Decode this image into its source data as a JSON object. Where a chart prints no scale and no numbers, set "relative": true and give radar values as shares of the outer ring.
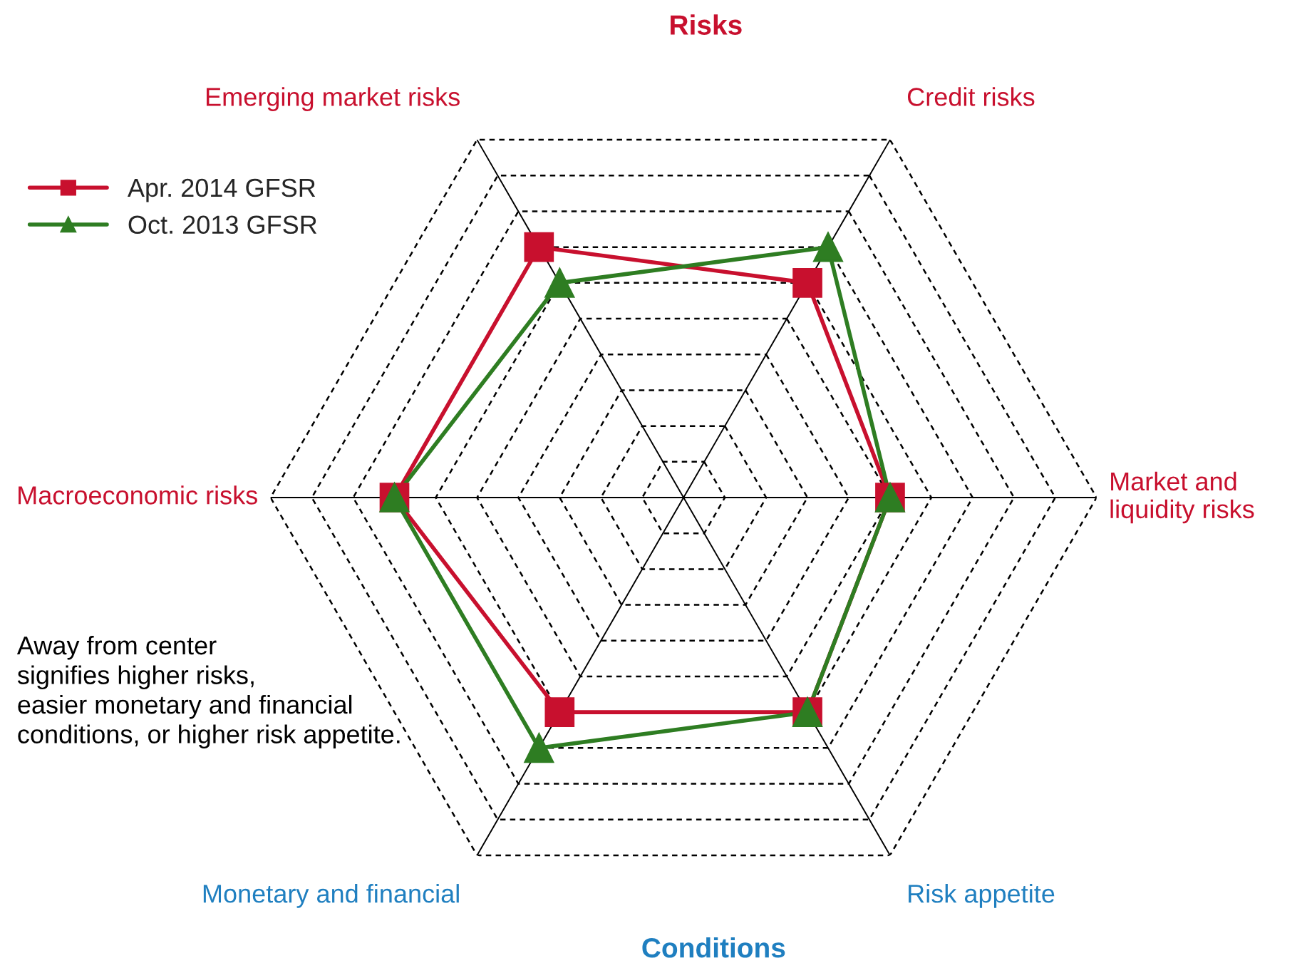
{
  "chart_data": {
    "type": "radar",
    "title": "Risks",
    "relative": true,
    "categories": [
      "Credit risks",
      "Market and liquidity risks",
      "Risk appetite",
      "Monetary and financial",
      "Macroeconomic risks",
      "Emerging market risks"
    ],
    "series": [
      {
        "name": "Apr. 2014 GFSR",
        "color": "#c8102e",
        "marker": "square",
        "values": [
          0.6,
          0.5,
          0.6,
          0.6,
          0.7,
          0.7
        ]
      },
      {
        "name": "Oct. 2013 GFSR",
        "color": "#2e7d22",
        "marker": "triangle",
        "values": [
          0.7,
          0.5,
          0.6,
          0.7,
          0.7,
          0.6
        ]
      }
    ],
    "annotations": [
      "Conditions",
      "Away from center\nsignifies higher risks,\neasier monetary and financial\nconditions, or higher risk appetite."
    ],
    "grid": true,
    "legend": "top left",
    "line_style": "solid"
  }
}
